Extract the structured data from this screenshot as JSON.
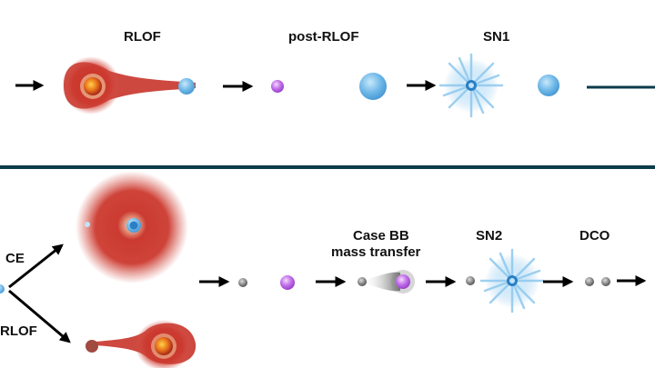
{
  "top_row": {
    "labels": {
      "rlof": "RLOF",
      "post_rlof": "post-RLOF",
      "sn1": "SN1"
    }
  },
  "bottom_row": {
    "labels": {
      "ce": "CE",
      "rlof": "RLOF",
      "case_bb_line1": "Case BB",
      "case_bb_line2": "mass transfer",
      "sn2": "SN2",
      "dco": "DCO"
    }
  },
  "colors": {
    "divider": "#0d3b4a",
    "giant_red": "#c8342a",
    "core_orange": "#e8731a",
    "blue_star": "#6fb8e8",
    "purple_star": "#c070e8",
    "remnant_gray": "#8a8a8a",
    "arrow": "#000000"
  }
}
